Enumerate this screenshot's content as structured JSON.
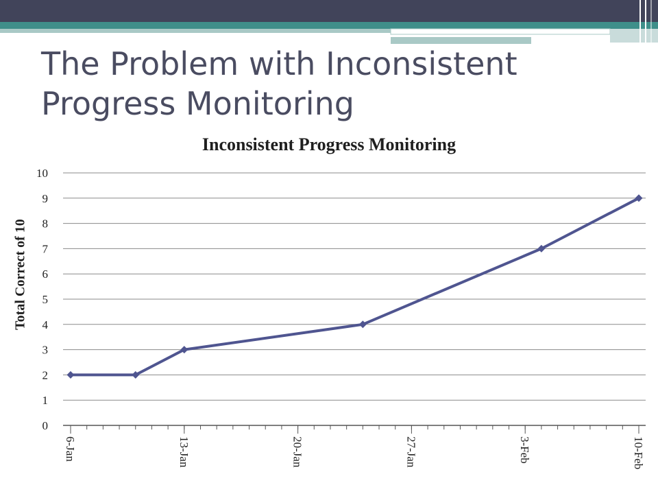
{
  "slide": {
    "title": "The Problem with Inconsistent Progress Monitoring"
  },
  "colors": {
    "band_dark": "#41445a",
    "band_teal": "#3f8f8a",
    "band_light": "#a9c9c6",
    "title": "#4a4c61",
    "series": "#4f5590",
    "grid": "#8a8a8a"
  },
  "chart_data": {
    "type": "line",
    "title": "Inconsistent Progress Monitoring",
    "xlabel": "",
    "ylabel": "Total Correct of 10",
    "ylim": [
      0,
      10
    ],
    "yticks": [
      0,
      1,
      2,
      3,
      4,
      5,
      6,
      7,
      8,
      9,
      10
    ],
    "xlim": [
      "2012-01-06",
      "2012-02-10"
    ],
    "xticks": [
      {
        "date": "2012-01-06",
        "label": "6-Jan"
      },
      {
        "date": "2012-01-13",
        "label": "13-Jan"
      },
      {
        "date": "2012-01-20",
        "label": "20-Jan"
      },
      {
        "date": "2012-01-27",
        "label": "27-Jan"
      },
      {
        "date": "2012-02-03",
        "label": "3-Feb"
      },
      {
        "date": "2012-02-10",
        "label": "10-Feb"
      }
    ],
    "grid": true,
    "legend": "none",
    "series": [
      {
        "name": "",
        "points": [
          {
            "x": "2012-01-06",
            "y": 2
          },
          {
            "x": "2012-01-10",
            "y": 2
          },
          {
            "x": "2012-01-13",
            "y": 3
          },
          {
            "x": "2012-01-24",
            "y": 4
          },
          {
            "x": "2012-02-04",
            "y": 7
          },
          {
            "x": "2012-02-10",
            "y": 9
          }
        ]
      }
    ]
  }
}
